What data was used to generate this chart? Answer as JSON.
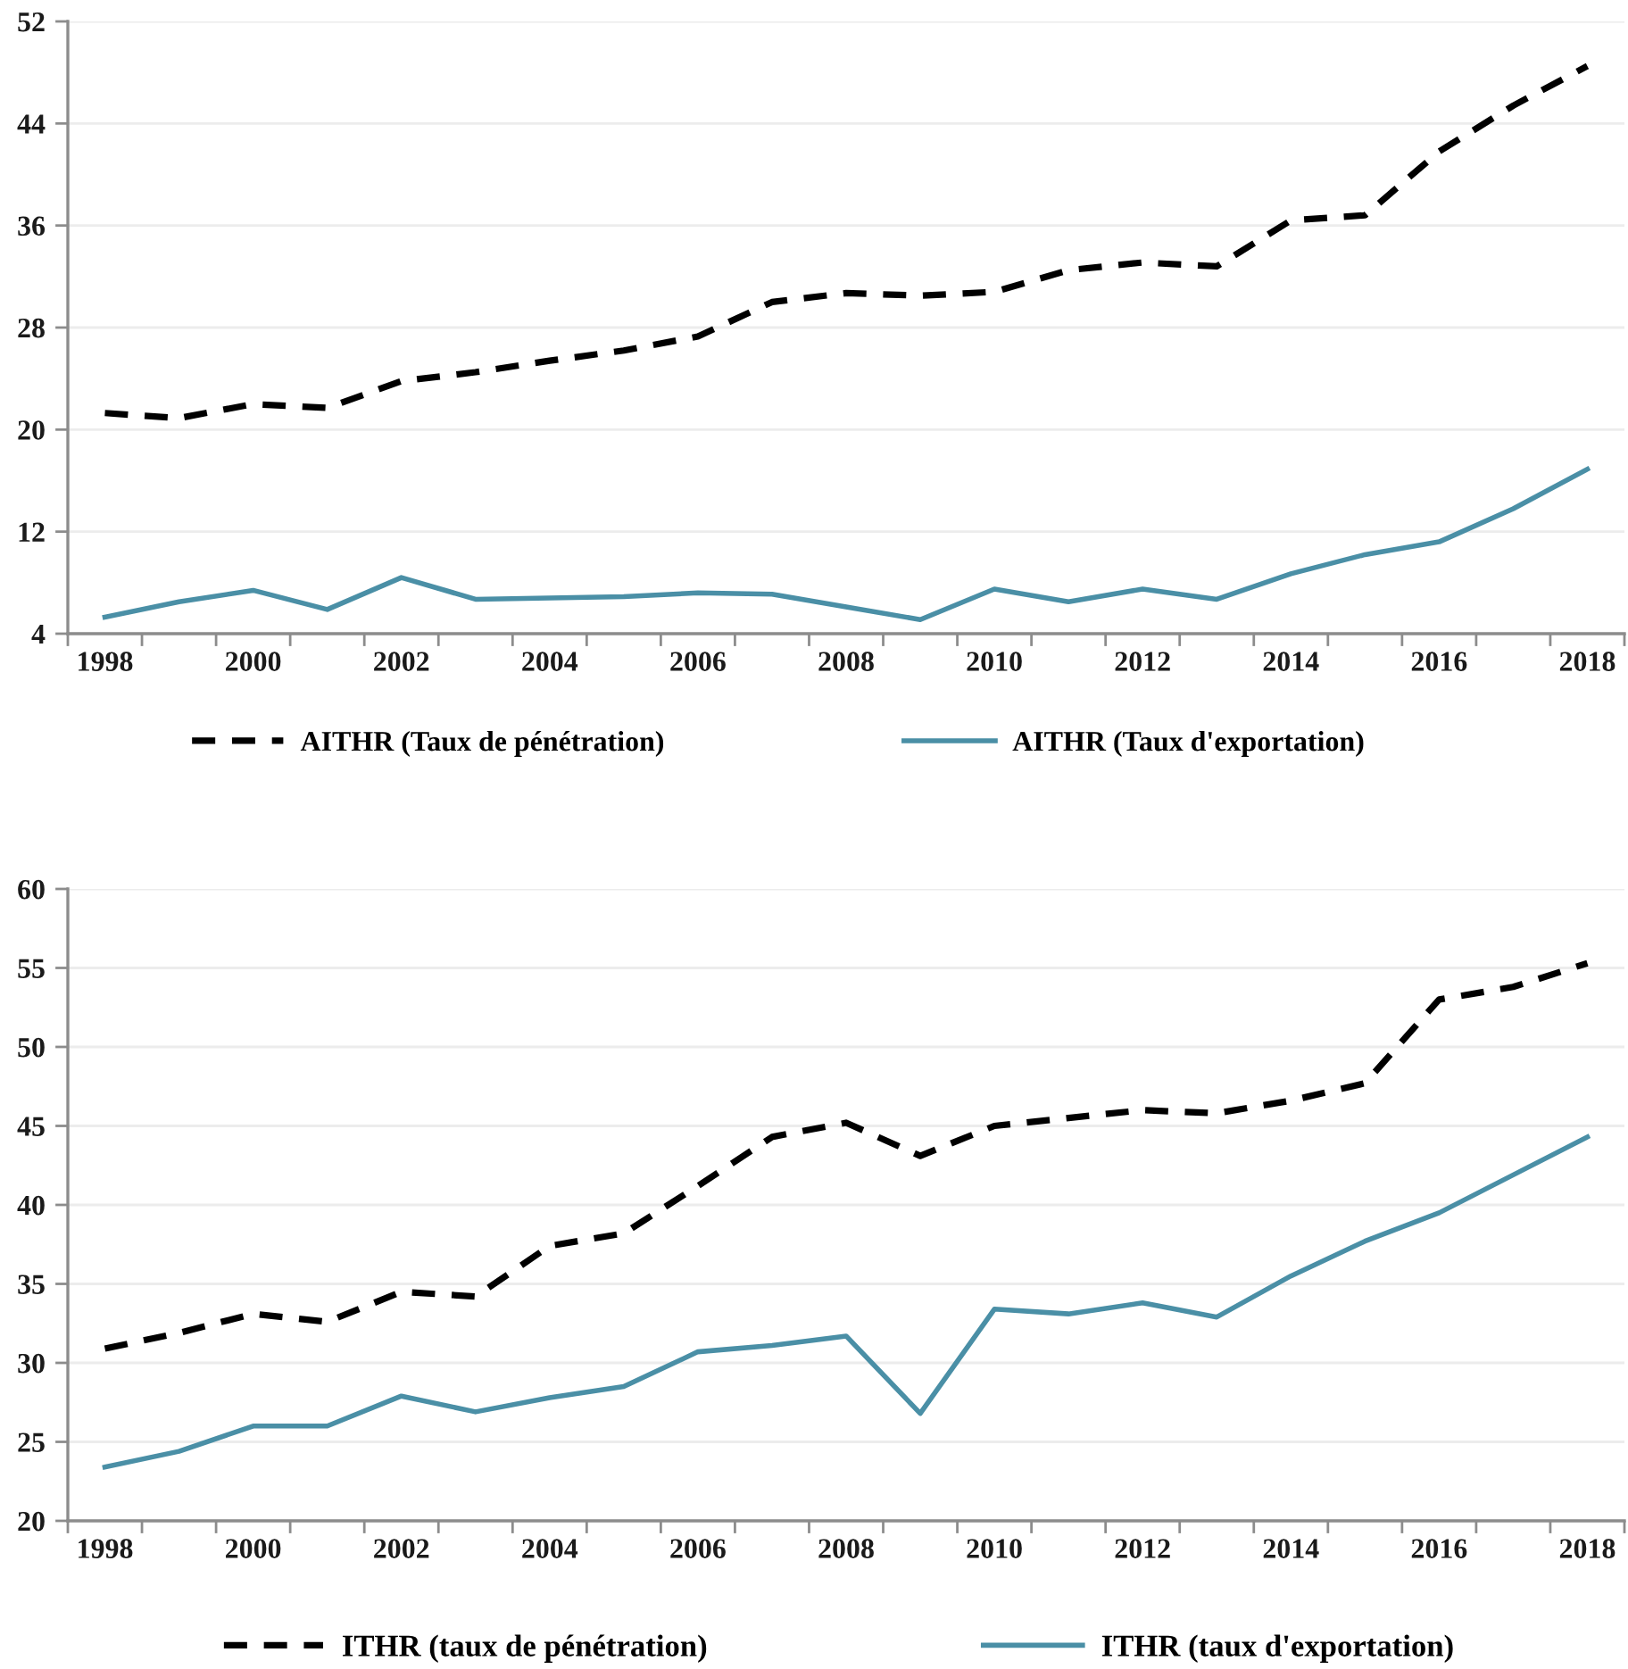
{
  "chart_data": [
    {
      "type": "line",
      "categories": [
        "1998",
        null,
        "2000",
        null,
        "2002",
        null,
        "2004",
        null,
        "2006",
        null,
        "2008",
        null,
        "2010",
        null,
        "2012",
        null,
        "2014",
        null,
        "2016",
        null,
        "2018"
      ],
      "series": [
        {
          "name": "AITHR (Taux de pénétration)",
          "color": "#000000",
          "line_style": "dashed",
          "values": [
            21.3,
            20.9,
            22.0,
            21.7,
            23.8,
            24.5,
            25.4,
            26.2,
            27.3,
            30.0,
            30.7,
            30.5,
            30.8,
            32.5,
            33.1,
            32.8,
            36.4,
            36.8,
            41.8,
            45.4,
            48.5
          ]
        },
        {
          "name": "AITHR (Taux d'exportation)",
          "color": "#4a8fa6",
          "line_style": "solid",
          "values": [
            5.3,
            6.5,
            7.4,
            5.9,
            8.4,
            6.7,
            6.8,
            6.9,
            7.2,
            7.1,
            6.1,
            5.1,
            7.5,
            6.5,
            7.5,
            6.7,
            8.7,
            10.2,
            11.2,
            13.8,
            16.9
          ]
        }
      ],
      "ylim": [
        4,
        52
      ],
      "yticks": [
        4,
        12,
        20,
        28,
        36,
        44,
        52
      ],
      "grid": "y",
      "legend": "bottom"
    },
    {
      "type": "line",
      "categories": [
        "1998",
        null,
        "2000",
        null,
        "2002",
        null,
        "2004",
        null,
        "2006",
        null,
        "2008",
        null,
        "2010",
        null,
        "2012",
        null,
        "2014",
        null,
        "2016",
        null,
        "2018"
      ],
      "series": [
        {
          "name": "ITHR (taux de pénétration)",
          "color": "#000000",
          "line_style": "dashed",
          "values": [
            30.9,
            31.9,
            33.1,
            32.6,
            34.5,
            34.2,
            37.4,
            38.2,
            41.2,
            44.3,
            45.2,
            43.1,
            45.0,
            45.5,
            46.0,
            45.8,
            46.6,
            47.7,
            53.0,
            53.8,
            55.3
          ]
        },
        {
          "name": "ITHR (taux d'exportation)",
          "color": "#4a8fa6",
          "line_style": "solid",
          "values": [
            23.4,
            24.4,
            26.0,
            26.0,
            27.9,
            26.9,
            27.8,
            28.5,
            30.7,
            31.1,
            31.7,
            26.8,
            33.4,
            33.1,
            33.8,
            32.9,
            35.5,
            37.7,
            39.5,
            41.9,
            44.3
          ]
        }
      ],
      "ylim": [
        20,
        60
      ],
      "yticks": [
        20,
        25,
        30,
        35,
        40,
        45,
        50,
        55,
        60
      ],
      "grid": "y",
      "legend": "bottom"
    }
  ]
}
